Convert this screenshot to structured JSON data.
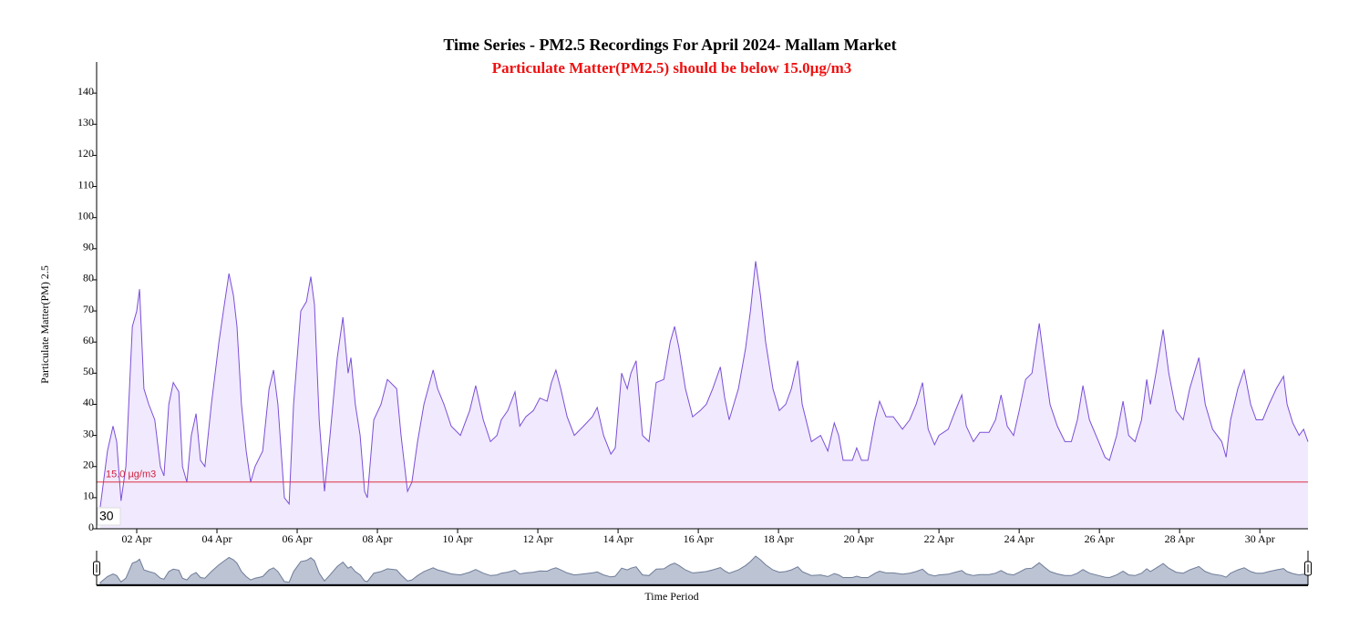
{
  "chart_data": {
    "type": "area",
    "title": "Time Series - PM2.5 Recordings For April 2024- Mallam Market",
    "subtitle": "Particulate Matter(PM2.5) should be below 15.0µg/m3",
    "y_label": "Particulate Matter(PM) 2.5",
    "x_label": "Time Period",
    "annotation": "30",
    "threshold": {
      "value": 15,
      "label": "15.0 µg/m3",
      "color": "#e0304a"
    },
    "color": "#7b4fd8",
    "fill": "#f1e9fd",
    "xlim": [
      1,
      31.2
    ],
    "ylim": [
      0,
      150
    ],
    "xticks": [
      {
        "value": 2,
        "label": "02 Apr"
      },
      {
        "value": 4,
        "label": "04 Apr"
      },
      {
        "value": 6,
        "label": "06 Apr"
      },
      {
        "value": 8,
        "label": "08 Apr"
      },
      {
        "value": 10,
        "label": "10 Apr"
      },
      {
        "value": 12,
        "label": "12 Apr"
      },
      {
        "value": 14,
        "label": "14 Apr"
      },
      {
        "value": 16,
        "label": "16 Apr"
      },
      {
        "value": 18,
        "label": "18 Apr"
      },
      {
        "value": 20,
        "label": "20 Apr"
      },
      {
        "value": 22,
        "label": "22 Apr"
      },
      {
        "value": 24,
        "label": "24 Apr"
      },
      {
        "value": 26,
        "label": "26 Apr"
      },
      {
        "value": 28,
        "label": "28 Apr"
      },
      {
        "value": 30,
        "label": "30 Apr"
      }
    ],
    "yticks": [
      0,
      10,
      20,
      30,
      40,
      50,
      60,
      70,
      80,
      90,
      100,
      110,
      120,
      130,
      140
    ],
    "x": [
      1.09,
      1.27,
      1.41,
      1.5,
      1.61,
      1.73,
      1.89,
      2.0,
      2.07,
      2.18,
      2.3,
      2.45,
      2.59,
      2.68,
      2.8,
      2.91,
      3.05,
      3.14,
      3.25,
      3.36,
      3.48,
      3.59,
      3.7,
      3.86,
      4.05,
      4.16,
      4.3,
      4.41,
      4.5,
      4.61,
      4.73,
      4.84,
      4.95,
      5.14,
      5.3,
      5.41,
      5.52,
      5.68,
      5.8,
      5.91,
      6.09,
      6.23,
      6.34,
      6.43,
      6.55,
      6.68,
      6.82,
      7.0,
      7.14,
      7.27,
      7.34,
      7.45,
      7.57,
      7.68,
      7.75,
      7.91,
      8.09,
      8.25,
      8.48,
      8.59,
      8.75,
      8.86,
      9.0,
      9.16,
      9.39,
      9.5,
      9.66,
      9.84,
      10.07,
      10.3,
      10.45,
      10.64,
      10.82,
      10.98,
      11.09,
      11.25,
      11.43,
      11.55,
      11.7,
      11.89,
      12.05,
      12.23,
      12.34,
      12.45,
      12.57,
      12.73,
      12.91,
      13.14,
      13.36,
      13.48,
      13.64,
      13.82,
      13.93,
      14.09,
      14.23,
      14.32,
      14.45,
      14.61,
      14.77,
      14.95,
      15.14,
      15.3,
      15.41,
      15.52,
      15.68,
      15.86,
      16.05,
      16.2,
      16.36,
      16.55,
      16.66,
      16.77,
      17.0,
      17.18,
      17.3,
      17.43,
      17.55,
      17.68,
      17.86,
      18.02,
      18.18,
      18.32,
      18.48,
      18.59,
      18.82,
      19.05,
      19.23,
      19.39,
      19.5,
      19.61,
      19.84,
      19.95,
      20.07,
      20.23,
      20.41,
      20.52,
      20.68,
      20.86,
      21.09,
      21.27,
      21.43,
      21.59,
      21.73,
      21.89,
      22.0,
      22.23,
      22.41,
      22.57,
      22.68,
      22.86,
      23.02,
      23.25,
      23.41,
      23.55,
      23.7,
      23.86,
      24.0,
      24.16,
      24.32,
      24.5,
      24.61,
      24.77,
      24.95,
      25.14,
      25.3,
      25.45,
      25.59,
      25.75,
      25.98,
      26.14,
      26.25,
      26.43,
      26.59,
      26.73,
      26.89,
      27.05,
      27.18,
      27.27,
      27.41,
      27.59,
      27.73,
      27.91,
      28.09,
      28.25,
      28.48,
      28.64,
      28.82,
      29.05,
      29.16,
      29.27,
      29.45,
      29.61,
      29.77,
      29.91,
      30.07,
      30.23,
      30.41,
      30.59,
      30.68,
      30.82,
      30.98,
      31.09,
      31.2
    ],
    "values": [
      7,
      25,
      33,
      28,
      9,
      20,
      65,
      70,
      77,
      45,
      40,
      35,
      20,
      17,
      40,
      47,
      44,
      20,
      15,
      30,
      37,
      22,
      20,
      40,
      60,
      70,
      82,
      75,
      65,
      40,
      25,
      15,
      20,
      25,
      45,
      51,
      40,
      10,
      8,
      40,
      70,
      73,
      81,
      72,
      35,
      12,
      30,
      55,
      68,
      50,
      55,
      40,
      30,
      12,
      10,
      35,
      40,
      48,
      45,
      30,
      12,
      15,
      28,
      40,
      51,
      45,
      40,
      33,
      30,
      38,
      46,
      35,
      28,
      30,
      35,
      38,
      44,
      33,
      36,
      38,
      42,
      41,
      47,
      51,
      45,
      36,
      30,
      33,
      36,
      39,
      30,
      24,
      26,
      50,
      45,
      50,
      54,
      30,
      28,
      47,
      48,
      60,
      65,
      58,
      45,
      36,
      38,
      40,
      45,
      52,
      42,
      35,
      45,
      58,
      70,
      86,
      75,
      60,
      45,
      38,
      40,
      45,
      54,
      40,
      28,
      30,
      25,
      34,
      30,
      22,
      22,
      26,
      22,
      22,
      35,
      41,
      36,
      36,
      32,
      35,
      40,
      47,
      32,
      27,
      30,
      32,
      38,
      43,
      33,
      28,
      31,
      31,
      35,
      43,
      33,
      30,
      38,
      48,
      50,
      66,
      55,
      40,
      33,
      28,
      28,
      35,
      46,
      35,
      28,
      23,
      22,
      30,
      41,
      30,
      28,
      35,
      48,
      40,
      50,
      64,
      50,
      38,
      35,
      45,
      55,
      40,
      32,
      28,
      23,
      35,
      45,
      51,
      40,
      35,
      35,
      40,
      45,
      49,
      40,
      34,
      30,
      32,
      28
    ]
  }
}
